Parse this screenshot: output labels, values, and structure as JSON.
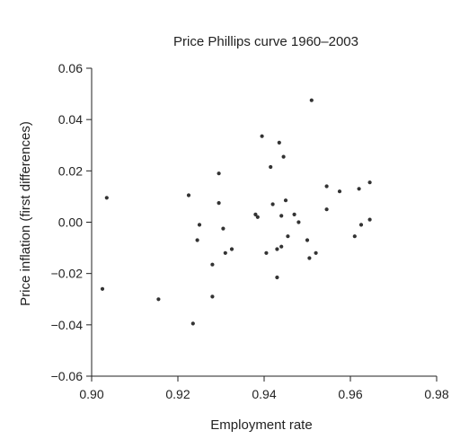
{
  "chart_data": {
    "type": "scatter",
    "title": "Price Phillips curve 1960–2003",
    "xlabel": "Employment rate",
    "ylabel": "Price inflation (first differences)",
    "xlim": [
      0.9,
      0.98
    ],
    "ylim": [
      -0.06,
      0.06
    ],
    "x_ticks": [
      "0.90",
      "0.92",
      "0.94",
      "0.96",
      "0.98"
    ],
    "y_ticks": [
      "−0.06",
      "−0.04",
      "−0.02",
      "0.00",
      "0.02",
      "0.04",
      "0.06"
    ],
    "grid": false,
    "legend": "none",
    "points": [
      {
        "x": 0.9035,
        "y": 0.0095
      },
      {
        "x": 0.9025,
        "y": -0.026
      },
      {
        "x": 0.9155,
        "y": -0.03
      },
      {
        "x": 0.9225,
        "y": 0.0105
      },
      {
        "x": 0.9235,
        "y": -0.0395
      },
      {
        "x": 0.9245,
        "y": -0.007
      },
      {
        "x": 0.925,
        "y": -0.001
      },
      {
        "x": 0.928,
        "y": -0.0165
      },
      {
        "x": 0.928,
        "y": -0.029
      },
      {
        "x": 0.9295,
        "y": 0.019
      },
      {
        "x": 0.9295,
        "y": 0.0075
      },
      {
        "x": 0.9305,
        "y": -0.0025
      },
      {
        "x": 0.931,
        "y": -0.012
      },
      {
        "x": 0.9325,
        "y": -0.0105
      },
      {
        "x": 0.938,
        "y": 0.003
      },
      {
        "x": 0.9385,
        "y": 0.002
      },
      {
        "x": 0.9395,
        "y": 0.0335
      },
      {
        "x": 0.9405,
        "y": -0.012
      },
      {
        "x": 0.9415,
        "y": 0.0215
      },
      {
        "x": 0.942,
        "y": 0.007
      },
      {
        "x": 0.943,
        "y": -0.0105
      },
      {
        "x": 0.943,
        "y": -0.0215
      },
      {
        "x": 0.9435,
        "y": 0.031
      },
      {
        "x": 0.944,
        "y": 0.0025
      },
      {
        "x": 0.944,
        "y": -0.0095
      },
      {
        "x": 0.9445,
        "y": 0.0255
      },
      {
        "x": 0.945,
        "y": 0.0085
      },
      {
        "x": 0.9455,
        "y": -0.0055
      },
      {
        "x": 0.947,
        "y": 0.003
      },
      {
        "x": 0.948,
        "y": 0.0
      },
      {
        "x": 0.95,
        "y": -0.007
      },
      {
        "x": 0.9505,
        "y": -0.014
      },
      {
        "x": 0.951,
        "y": 0.0475
      },
      {
        "x": 0.952,
        "y": -0.012
      },
      {
        "x": 0.9545,
        "y": 0.014
      },
      {
        "x": 0.9545,
        "y": 0.005
      },
      {
        "x": 0.9575,
        "y": 0.012
      },
      {
        "x": 0.961,
        "y": -0.0055
      },
      {
        "x": 0.962,
        "y": 0.013
      },
      {
        "x": 0.9625,
        "y": -0.001
      },
      {
        "x": 0.9645,
        "y": 0.0155
      },
      {
        "x": 0.9645,
        "y": 0.001
      }
    ]
  }
}
